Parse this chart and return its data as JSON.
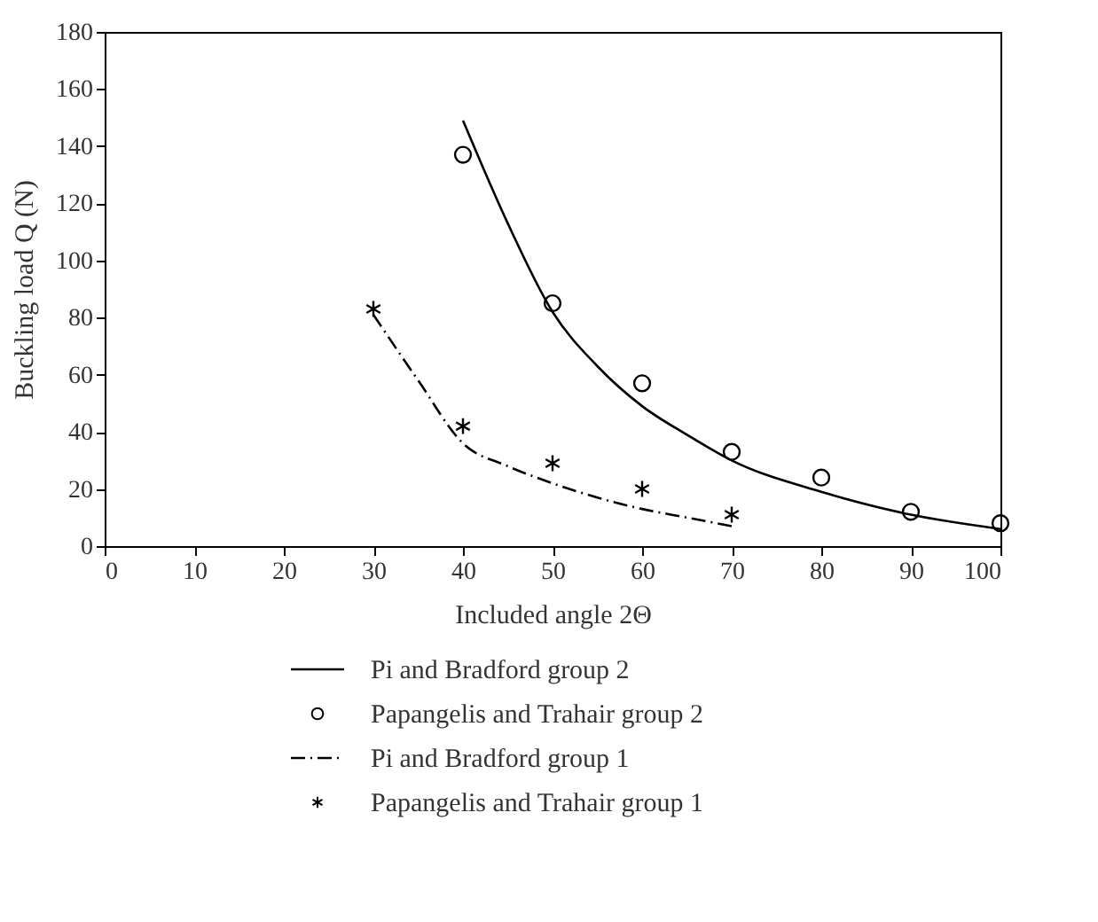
{
  "chart_data": {
    "type": "line",
    "xlabel": "Included angle 2Θ",
    "ylabel": "Buckling load Q (N)",
    "xlim": [
      0,
      100
    ],
    "xticks": [
      0,
      10,
      20,
      30,
      40,
      50,
      60,
      70,
      80,
      90,
      100
    ],
    "ylim": [
      0,
      180
    ],
    "yticks": [
      0,
      20,
      40,
      60,
      80,
      100,
      120,
      140,
      160,
      180
    ],
    "grid": false,
    "legend": "bottom",
    "series": [
      {
        "name": "Pi and Bradford group 2",
        "color": "#000000",
        "line_style": "solid",
        "x": [
          40,
          45,
          50,
          55,
          60,
          65,
          70,
          80,
          90,
          100
        ],
        "values": [
          149,
          113,
          82,
          63,
          49,
          39,
          30,
          19,
          11,
          6
        ]
      },
      {
        "name": "Papangelis and Trahair group 2",
        "type": "scatter",
        "color": "#000000",
        "marker": "circle",
        "x": [
          40,
          50,
          60,
          70,
          80,
          90,
          100
        ],
        "values": [
          137,
          85,
          57,
          33,
          24,
          12,
          8
        ]
      },
      {
        "name": "Pi and Bradford group 1",
        "color": "#000000",
        "line_style": "dashdot",
        "x": [
          30,
          35,
          40,
          45,
          50,
          55,
          60,
          65,
          70
        ],
        "values": [
          81,
          58,
          36,
          28,
          22,
          17,
          13,
          10,
          7
        ]
      },
      {
        "name": "Papangelis and Trahair group 1",
        "type": "scatter",
        "color": "#000000",
        "marker": "cross",
        "x": [
          30,
          40,
          50,
          60,
          70
        ],
        "values": [
          83,
          42,
          29,
          20,
          11
        ]
      }
    ]
  }
}
